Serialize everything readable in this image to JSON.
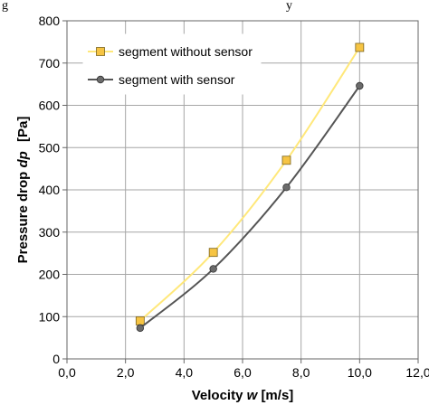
{
  "chart_data": {
    "type": "line",
    "title": "",
    "header_fragment_left": "g",
    "header_fragment_right": "y",
    "xlabel": "Velocity",
    "xlabel_symbol": "w",
    "xlabel_unit": "[m/s]",
    "ylabel": "Pressure drop",
    "ylabel_symbol": "dp",
    "ylabel_unit": "[Pa]",
    "xlim": [
      0,
      12
    ],
    "ylim": [
      0,
      800
    ],
    "x_ticks": [
      "0,0",
      "2,0",
      "4,0",
      "6,0",
      "8,0",
      "10,0",
      "12,0"
    ],
    "y_ticks": [
      "0",
      "100",
      "200",
      "300",
      "400",
      "500",
      "600",
      "700",
      "800"
    ],
    "grid": true,
    "legend_position": "top-left",
    "series": [
      {
        "name": "segment without sensor",
        "color": "#ffe87a",
        "marker": "square",
        "marker_fill": "#f6c443",
        "x": [
          2.5,
          5.0,
          7.5,
          10.0
        ],
        "y": [
          90,
          252,
          470,
          737
        ]
      },
      {
        "name": "segment with sensor",
        "color": "#555555",
        "marker": "circle",
        "marker_fill": "#6b6b6b",
        "x": [
          2.5,
          5.0,
          7.5,
          10.0
        ],
        "y": [
          73,
          213,
          406,
          646
        ]
      }
    ]
  }
}
